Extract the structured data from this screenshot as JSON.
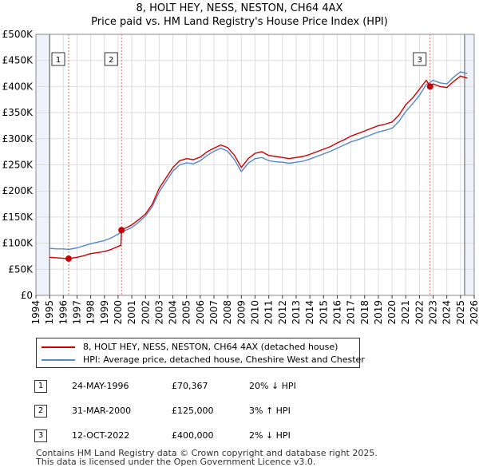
{
  "header": {
    "title_line1": "8, HOLT HEY, NESS, NESTON, CH64 4AX",
    "title_line2": "Price paid vs. HM Land Registry's House Price Index (HPI)"
  },
  "colors": {
    "property_line": "#cc0000",
    "hpi_line": "#5588cc",
    "sale_marker": "#cc0000",
    "sale_vline": "#e07070",
    "grid": "#dddddd",
    "future_shade": "#eef2fb"
  },
  "chart_data": {
    "type": "line",
    "title": "8, HOLT HEY, NESS, NESTON, CH64 4AX — Price paid vs. HM Land Registry's House Price Index (HPI)",
    "xlabel": "",
    "ylabel": "",
    "xlim": [
      1994,
      2026
    ],
    "ylim": [
      0,
      500000
    ],
    "grid": true,
    "y_ticks": [
      0,
      50000,
      100000,
      150000,
      200000,
      250000,
      300000,
      350000,
      400000,
      450000,
      500000
    ],
    "y_tick_labels": [
      "£0",
      "£50K",
      "£100K",
      "£150K",
      "£200K",
      "£250K",
      "£300K",
      "£350K",
      "£400K",
      "£450K",
      "£500K"
    ],
    "x_ticks": [
      1994,
      1995,
      1996,
      1997,
      1998,
      1999,
      2000,
      2001,
      2002,
      2003,
      2004,
      2005,
      2006,
      2007,
      2008,
      2009,
      2010,
      2011,
      2012,
      2013,
      2014,
      2015,
      2016,
      2017,
      2018,
      2019,
      2020,
      2021,
      2022,
      2023,
      2024,
      2025,
      2026
    ],
    "x_tick_labels": [
      "1994",
      "1995",
      "1996",
      "1997",
      "1998",
      "1999",
      "2000",
      "2001",
      "2002",
      "2003",
      "2004",
      "2005",
      "2006",
      "2007",
      "2008",
      "2009",
      "2010",
      "2011",
      "2012",
      "2013",
      "2014",
      "2015",
      "2016",
      "2017",
      "2018",
      "2019",
      "2020",
      "2021",
      "2022",
      "2023",
      "2024",
      "2025",
      "2026"
    ],
    "data_start": 1995.0,
    "data_end": 2025.6,
    "shade_start": 2025.3,
    "series": [
      {
        "name": "8, HOLT HEY, NESS, NESTON, CH64 4AX (detached house)",
        "points": [
          [
            1995.0,
            73000
          ],
          [
            1995.5,
            72000
          ],
          [
            1996.0,
            71000
          ],
          [
            1996.4,
            70367
          ],
          [
            1997.0,
            73000
          ],
          [
            1997.5,
            76000
          ],
          [
            1998.0,
            80000
          ],
          [
            1998.5,
            82000
          ],
          [
            1999.0,
            84000
          ],
          [
            1999.5,
            88000
          ],
          [
            2000.2,
            96000
          ],
          [
            2000.25,
            125000
          ],
          [
            2001.0,
            135000
          ],
          [
            2001.5,
            145000
          ],
          [
            2002.0,
            156000
          ],
          [
            2002.5,
            175000
          ],
          [
            2003.0,
            205000
          ],
          [
            2003.5,
            225000
          ],
          [
            2004.0,
            245000
          ],
          [
            2004.5,
            258000
          ],
          [
            2005.0,
            262000
          ],
          [
            2005.5,
            260000
          ],
          [
            2006.0,
            265000
          ],
          [
            2006.5,
            275000
          ],
          [
            2007.0,
            282000
          ],
          [
            2007.5,
            288000
          ],
          [
            2008.0,
            283000
          ],
          [
            2008.5,
            268000
          ],
          [
            2009.0,
            245000
          ],
          [
            2009.5,
            262000
          ],
          [
            2010.0,
            272000
          ],
          [
            2010.5,
            275000
          ],
          [
            2011.0,
            268000
          ],
          [
            2011.5,
            266000
          ],
          [
            2012.0,
            264000
          ],
          [
            2012.5,
            262000
          ],
          [
            2013.0,
            264000
          ],
          [
            2013.5,
            266000
          ],
          [
            2014.0,
            270000
          ],
          [
            2014.5,
            275000
          ],
          [
            2015.0,
            280000
          ],
          [
            2015.5,
            285000
          ],
          [
            2016.0,
            292000
          ],
          [
            2016.5,
            298000
          ],
          [
            2017.0,
            305000
          ],
          [
            2017.5,
            310000
          ],
          [
            2018.0,
            315000
          ],
          [
            2018.5,
            320000
          ],
          [
            2019.0,
            325000
          ],
          [
            2019.5,
            328000
          ],
          [
            2020.0,
            332000
          ],
          [
            2020.5,
            345000
          ],
          [
            2021.0,
            365000
          ],
          [
            2021.5,
            378000
          ],
          [
            2022.0,
            395000
          ],
          [
            2022.5,
            412000
          ],
          [
            2022.78,
            400000
          ],
          [
            2023.0,
            405000
          ],
          [
            2023.5,
            400000
          ],
          [
            2024.0,
            398000
          ],
          [
            2024.5,
            410000
          ],
          [
            2025.0,
            420000
          ],
          [
            2025.5,
            416000
          ]
        ]
      },
      {
        "name": "HPI: Average price, detached house, Cheshire West and Chester",
        "points": [
          [
            1995.0,
            90000
          ],
          [
            1995.5,
            89000
          ],
          [
            1996.0,
            89000
          ],
          [
            1996.4,
            88000
          ],
          [
            1997.0,
            91000
          ],
          [
            1997.5,
            95000
          ],
          [
            1998.0,
            99000
          ],
          [
            1998.5,
            102000
          ],
          [
            1999.0,
            105000
          ],
          [
            1999.5,
            110000
          ],
          [
            2000.25,
            121000
          ],
          [
            2001.0,
            130000
          ],
          [
            2001.5,
            140000
          ],
          [
            2002.0,
            152000
          ],
          [
            2002.5,
            170000
          ],
          [
            2003.0,
            198000
          ],
          [
            2003.5,
            218000
          ],
          [
            2004.0,
            238000
          ],
          [
            2004.5,
            250000
          ],
          [
            2005.0,
            254000
          ],
          [
            2005.5,
            252000
          ],
          [
            2006.0,
            258000
          ],
          [
            2006.5,
            268000
          ],
          [
            2007.0,
            276000
          ],
          [
            2007.5,
            282000
          ],
          [
            2008.0,
            276000
          ],
          [
            2008.5,
            260000
          ],
          [
            2009.0,
            237000
          ],
          [
            2009.5,
            253000
          ],
          [
            2010.0,
            262000
          ],
          [
            2010.5,
            264000
          ],
          [
            2011.0,
            258000
          ],
          [
            2011.5,
            256000
          ],
          [
            2012.0,
            255000
          ],
          [
            2012.5,
            253000
          ],
          [
            2013.0,
            255000
          ],
          [
            2013.5,
            257000
          ],
          [
            2014.0,
            261000
          ],
          [
            2014.5,
            266000
          ],
          [
            2015.0,
            271000
          ],
          [
            2015.5,
            276000
          ],
          [
            2016.0,
            282000
          ],
          [
            2016.5,
            288000
          ],
          [
            2017.0,
            294000
          ],
          [
            2017.5,
            298000
          ],
          [
            2018.0,
            303000
          ],
          [
            2018.5,
            308000
          ],
          [
            2019.0,
            313000
          ],
          [
            2019.5,
            316000
          ],
          [
            2020.0,
            320000
          ],
          [
            2020.5,
            333000
          ],
          [
            2021.0,
            352000
          ],
          [
            2021.5,
            367000
          ],
          [
            2022.0,
            383000
          ],
          [
            2022.5,
            404000
          ],
          [
            2022.78,
            408000
          ],
          [
            2023.0,
            412000
          ],
          [
            2023.5,
            407000
          ],
          [
            2024.0,
            405000
          ],
          [
            2024.5,
            418000
          ],
          [
            2025.0,
            428000
          ],
          [
            2025.5,
            425000
          ]
        ]
      }
    ],
    "sales": [
      {
        "label": "1",
        "date": 1996.39,
        "price": 70367
      },
      {
        "label": "2",
        "date": 2000.25,
        "price": 125000
      },
      {
        "label": "3",
        "date": 2022.78,
        "price": 400000
      }
    ]
  },
  "legend": {
    "property_label": "8, HOLT HEY, NESS, NESTON, CH64 4AX (detached house)",
    "hpi_label": "HPI: Average price, detached house, Cheshire West and Chester"
  },
  "sales_table": [
    {
      "num": "1",
      "date": "24-MAY-1996",
      "price": "£70,367",
      "hpi": "20% ↓ HPI"
    },
    {
      "num": "2",
      "date": "31-MAR-2000",
      "price": "£125,000",
      "hpi": "3% ↑ HPI"
    },
    {
      "num": "3",
      "date": "12-OCT-2022",
      "price": "£400,000",
      "hpi": "2% ↓ HPI"
    }
  ],
  "footer": {
    "line1": "Contains HM Land Registry data © Crown copyright and database right 2025.",
    "line2": "This data is licensed under the Open Government Licence v3.0."
  }
}
